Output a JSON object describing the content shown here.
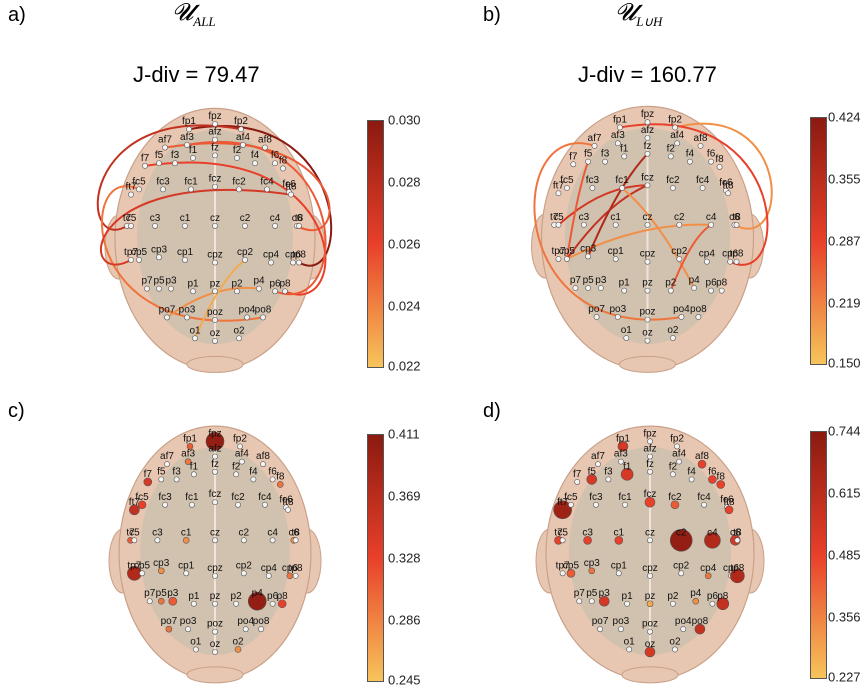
{
  "panels": [
    {
      "letter": "a)",
      "title_main": "𝓤",
      "title_sub": "ALL",
      "jdiv": "J-div = 79.47",
      "colorbar": {
        "ticks": [
          "0.030",
          "0.028",
          "0.026",
          "0.024",
          "0.022"
        ],
        "top_color": "#8b1a10",
        "bottom_color": "#f7c45a"
      }
    },
    {
      "letter": "b)",
      "title_main": "𝓤",
      "title_sub": "L∪H",
      "jdiv": "J-div = 160.77",
      "colorbar": {
        "ticks": [
          "0.424",
          "0.355",
          "0.287",
          "0.219",
          "0.150"
        ],
        "top_color": "#8b1a10",
        "bottom_color": "#f7c45a"
      }
    },
    {
      "letter": "c)",
      "colorbar": {
        "ticks": [
          "0.411",
          "0.369",
          "0.328",
          "0.286",
          "0.245"
        ],
        "top_color": "#8b1a10",
        "bottom_color": "#f7c45a"
      }
    },
    {
      "letter": "d)",
      "colorbar": {
        "ticks": [
          "0.744",
          "0.615",
          "0.485",
          "0.356",
          "0.227"
        ],
        "top_color": "#8b1a10",
        "bottom_color": "#f7c45a"
      }
    }
  ],
  "electrodes": [
    {
      "id": "fpz",
      "text": "fpz"
    },
    {
      "id": "fp1",
      "text": "fp1"
    },
    {
      "id": "fp2",
      "text": "fp2"
    },
    {
      "id": "afz",
      "text": "afz"
    },
    {
      "id": "af7",
      "text": "af7"
    },
    {
      "id": "af3",
      "text": "af3"
    },
    {
      "id": "af4",
      "text": "af4"
    },
    {
      "id": "af8",
      "text": "af8"
    },
    {
      "id": "f7",
      "text": "f7"
    },
    {
      "id": "f5",
      "text": "f5"
    },
    {
      "id": "f3",
      "text": "f3"
    },
    {
      "id": "f1",
      "text": "f1"
    },
    {
      "id": "fz",
      "text": "fz"
    },
    {
      "id": "f2",
      "text": "f2"
    },
    {
      "id": "f4",
      "text": "f4"
    },
    {
      "id": "f6",
      "text": "f6"
    },
    {
      "id": "f8",
      "text": "f8"
    },
    {
      "id": "ft7",
      "text": "ft7"
    },
    {
      "id": "fc5",
      "text": "fc5"
    },
    {
      "id": "fc3",
      "text": "fc3"
    },
    {
      "id": "fc1",
      "text": "fc1"
    },
    {
      "id": "fcz",
      "text": "fcz"
    },
    {
      "id": "fc2",
      "text": "fc2"
    },
    {
      "id": "fc4",
      "text": "fc4"
    },
    {
      "id": "fc6",
      "text": "fc6"
    },
    {
      "id": "ft8",
      "text": "ft8"
    },
    {
      "id": "t7",
      "text": "t7"
    },
    {
      "id": "c5",
      "text": "c5"
    },
    {
      "id": "c3",
      "text": "c3"
    },
    {
      "id": "c1",
      "text": "c1"
    },
    {
      "id": "cz",
      "text": "cz"
    },
    {
      "id": "c2",
      "text": "c2"
    },
    {
      "id": "c4",
      "text": "c4"
    },
    {
      "id": "c6",
      "text": "c6"
    },
    {
      "id": "t8",
      "text": "t8"
    },
    {
      "id": "tp7",
      "text": "tp7"
    },
    {
      "id": "cp5",
      "text": "cp5"
    },
    {
      "id": "cp3",
      "text": "cp3"
    },
    {
      "id": "cp1",
      "text": "cp1"
    },
    {
      "id": "cpz",
      "text": "cpz"
    },
    {
      "id": "cp2",
      "text": "cp2"
    },
    {
      "id": "cp4",
      "text": "cp4"
    },
    {
      "id": "cp6",
      "text": "cp6"
    },
    {
      "id": "tp8",
      "text": "tp8"
    },
    {
      "id": "p7",
      "text": "p7"
    },
    {
      "id": "p5",
      "text": "p5"
    },
    {
      "id": "p3",
      "text": "p3"
    },
    {
      "id": "p1",
      "text": "p1"
    },
    {
      "id": "pz",
      "text": "pz"
    },
    {
      "id": "p2",
      "text": "p2"
    },
    {
      "id": "p4",
      "text": "p4"
    },
    {
      "id": "p6",
      "text": "p6"
    },
    {
      "id": "p8",
      "text": "p8"
    },
    {
      "id": "po7",
      "text": "po7"
    },
    {
      "id": "po3",
      "text": "po3"
    },
    {
      "id": "poz",
      "text": "poz"
    },
    {
      "id": "po4",
      "text": "po4"
    },
    {
      "id": "po8",
      "text": "po8"
    },
    {
      "id": "o1",
      "text": "o1"
    },
    {
      "id": "oz",
      "text": "oz"
    },
    {
      "id": "o2",
      "text": "o2"
    }
  ],
  "colors": {
    "head_skin": "#e8c7b2",
    "head_skin_edge": "#c9a088",
    "brain": "#cdbfae",
    "brain_shade": "#a9a29a",
    "electrode_plain": "#f4f4f4",
    "cmap_dark": "#8b1a10",
    "cmap_mid": "#e8402a",
    "cmap_light": "#f7c45a"
  }
}
